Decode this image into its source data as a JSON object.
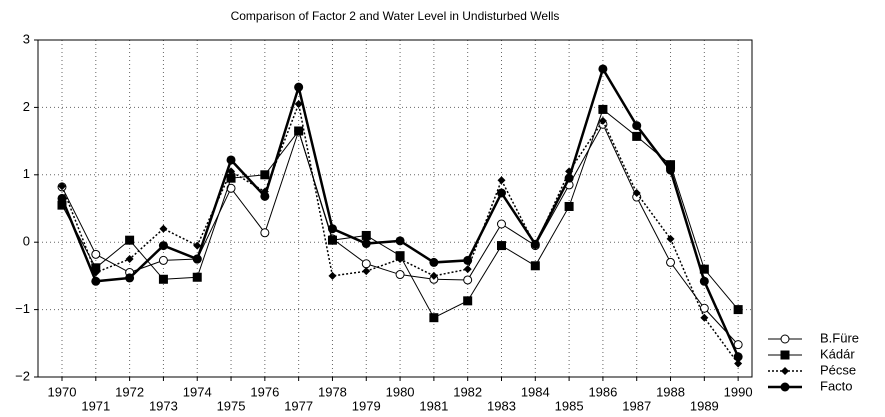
{
  "chart_data": {
    "type": "line",
    "title": "Comparison of Factor 2 and Water Level in Undisturbed Wells",
    "x": [
      1970,
      1971,
      1972,
      1973,
      1974,
      1975,
      1976,
      1977,
      1978,
      1979,
      1980,
      1981,
      1982,
      1983,
      1984,
      1985,
      1986,
      1987,
      1988,
      1989,
      1990
    ],
    "series": [
      {
        "name": "B.Füre",
        "color": "#000000",
        "marker": "open-circle",
        "dash": "solid",
        "width": 1,
        "values": [
          0.82,
          -0.18,
          -0.45,
          -0.27,
          -0.25,
          0.8,
          0.14,
          1.65,
          0.05,
          -0.32,
          -0.48,
          -0.55,
          -0.56,
          0.27,
          -0.05,
          0.85,
          1.75,
          0.67,
          -0.3,
          -0.98,
          -1.52
        ]
      },
      {
        "name": "Kádár",
        "color": "#000000",
        "marker": "square",
        "dash": "solid",
        "width": 1,
        "values": [
          0.55,
          -0.38,
          0.03,
          -0.55,
          -0.52,
          0.95,
          1.0,
          1.65,
          0.03,
          0.1,
          -0.2,
          -1.12,
          -0.87,
          -0.05,
          -0.35,
          0.53,
          1.97,
          1.57,
          1.15,
          -0.4,
          -1.0
        ]
      },
      {
        "name": "Pécse",
        "color": "#000000",
        "marker": "diamond",
        "dash": "dotted",
        "width": 1.5,
        "values": [
          0.83,
          -0.45,
          -0.25,
          0.2,
          -0.05,
          1.05,
          0.75,
          2.05,
          -0.5,
          -0.43,
          -0.25,
          -0.5,
          -0.4,
          0.92,
          -0.05,
          1.05,
          1.8,
          0.73,
          0.05,
          -1.12,
          -1.8
        ]
      },
      {
        "name": "Facto",
        "color": "#000000",
        "marker": "circle",
        "dash": "solid",
        "width": 2.5,
        "values": [
          0.65,
          -0.58,
          -0.53,
          -0.05,
          -0.25,
          1.22,
          0.68,
          2.3,
          0.2,
          -0.02,
          0.02,
          -0.3,
          -0.27,
          0.73,
          -0.03,
          0.95,
          2.57,
          1.73,
          1.07,
          -0.58,
          -1.7
        ]
      }
    ],
    "xlim": [
      1969.29,
      1990.41
    ],
    "xticks": [
      1970,
      1971,
      1972,
      1973,
      1974,
      1975,
      1976,
      1977,
      1978,
      1979,
      1980,
      1981,
      1982,
      1983,
      1984,
      1985,
      1986,
      1987,
      1988,
      1989,
      1990
    ],
    "ylim": [
      -2,
      3
    ],
    "yticks": [
      {
        "value": -2,
        "label": "−2"
      },
      {
        "value": -1,
        "label": "−1"
      },
      0,
      1,
      2,
      3
    ],
    "grid": true,
    "legend": "lower-right"
  }
}
